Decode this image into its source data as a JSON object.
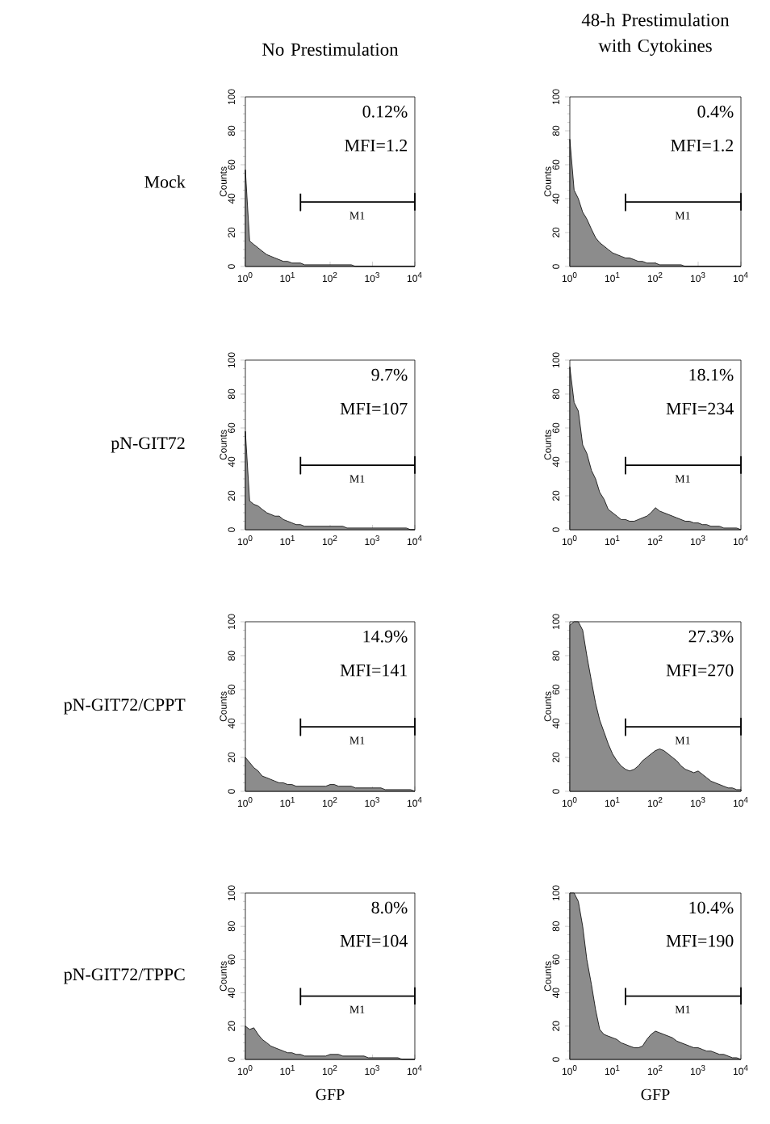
{
  "chart_data": [
    {
      "type": "area",
      "title": "No Prestimulation",
      "ylabel": "Counts",
      "log": "x",
      "xlim": [
        1,
        10000
      ],
      "ylim": [
        0,
        100
      ],
      "xticks": [
        {
          "value": 1,
          "label": "10$^{0}$"
        },
        {
          "value": 10,
          "label": "10$^{1}$"
        },
        {
          "value": 100,
          "label": "10$^{2}$"
        },
        {
          "value": 1000,
          "label": "10$^{3}$"
        },
        {
          "value": 10000,
          "label": "10$^{4}$"
        }
      ],
      "yticks": [
        0,
        20,
        40,
        60,
        80,
        100
      ],
      "annotations": [
        "Mock",
        "0.12%",
        "MFI=1.2",
        "M1"
      ],
      "series": [
        {
          "color": "#8c8c8c",
          "x": [
            1,
            1.26,
            1.58,
            2,
            2.5,
            3.2,
            4,
            5,
            6.3,
            7.9,
            10,
            12.6,
            15.8,
            20,
            25,
            32,
            40,
            50,
            63,
            79,
            100,
            126,
            158,
            200,
            251,
            316,
            398,
            501,
            631,
            794,
            1000,
            1259,
            1585,
            1995,
            2512,
            3162,
            3981,
            5012,
            6310,
            7943,
            10000
          ],
          "values": [
            57,
            15,
            13,
            11,
            9,
            7,
            6,
            5,
            4,
            3,
            3,
            2,
            2,
            2,
            1,
            1,
            1,
            1,
            1,
            1,
            1,
            1,
            1,
            1,
            1,
            1,
            0,
            0,
            0,
            0,
            0,
            0,
            0,
            0,
            0,
            0,
            0,
            0,
            0,
            0,
            0
          ]
        },
        {
          "type": "line",
          "color": "#000000",
          "x": [
            20,
            20,
            20,
            10000,
            10000,
            10000
          ],
          "values": [
            43,
            33,
            38,
            38,
            43,
            33
          ]
        }
      ]
    },
    {
      "type": "area",
      "title": "48-h Prestimulation with Cytokines",
      "ylabel": "Counts",
      "log": "x",
      "xlim": [
        1,
        10000
      ],
      "ylim": [
        0,
        100
      ],
      "xticks": [
        {
          "value": 1,
          "label": "10$^{0}$"
        },
        {
          "value": 10,
          "label": "10$^{1}$"
        },
        {
          "value": 100,
          "label": "10$^{2}$"
        },
        {
          "value": 1000,
          "label": "10$^{3}$"
        },
        {
          "value": 10000,
          "label": "10$^{4}$"
        }
      ],
      "yticks": [
        0,
        20,
        40,
        60,
        80,
        100
      ],
      "annotations": [
        "0.4%",
        "MFI=1.2",
        "M1"
      ],
      "series": [
        {
          "color": "#8c8c8c",
          "x": [
            1,
            1.26,
            1.58,
            2,
            2.5,
            3.2,
            4,
            5,
            6.3,
            7.9,
            10,
            12.6,
            15.8,
            20,
            25,
            32,
            40,
            50,
            63,
            79,
            100,
            126,
            158,
            200,
            251,
            316,
            398,
            501,
            631,
            794,
            1000,
            1259,
            1585,
            1995,
            2512,
            3162,
            3981,
            5012,
            6310,
            7943,
            10000
          ],
          "values": [
            75,
            45,
            40,
            32,
            28,
            22,
            17,
            14,
            12,
            10,
            8,
            7,
            6,
            5,
            5,
            4,
            3,
            3,
            2,
            2,
            2,
            1,
            1,
            1,
            1,
            1,
            1,
            0,
            0,
            0,
            0,
            0,
            0,
            0,
            0,
            0,
            0,
            0,
            0,
            0,
            0
          ]
        },
        {
          "type": "line",
          "color": "#000000",
          "x": [
            20,
            20,
            20,
            10000,
            10000,
            10000
          ],
          "values": [
            43,
            33,
            38,
            38,
            43,
            33
          ]
        }
      ]
    },
    {
      "type": "area",
      "ylabel": "Counts",
      "log": "x",
      "xlim": [
        1,
        10000
      ],
      "ylim": [
        0,
        100
      ],
      "xticks": [
        {
          "value": 1,
          "label": "10$^{0}$"
        },
        {
          "value": 10,
          "label": "10$^{1}$"
        },
        {
          "value": 100,
          "label": "10$^{2}$"
        },
        {
          "value": 1000,
          "label": "10$^{3}$"
        },
        {
          "value": 10000,
          "label": "10$^{4}$"
        }
      ],
      "yticks": [
        0,
        20,
        40,
        60,
        80,
        100
      ],
      "annotations": [
        "pN-GIT72",
        "9.7%",
        "MFI=107",
        "M1"
      ],
      "series": [
        {
          "color": "#8c8c8c",
          "x": [
            1,
            1.26,
            1.58,
            2,
            2.5,
            3.2,
            4,
            5,
            6.3,
            7.9,
            10,
            12.6,
            15.8,
            20,
            25,
            32,
            40,
            50,
            63,
            79,
            100,
            126,
            158,
            200,
            251,
            316,
            398,
            501,
            631,
            794,
            1000,
            1259,
            1585,
            1995,
            2512,
            3162,
            3981,
            5012,
            6310,
            7943,
            10000
          ],
          "values": [
            58,
            17,
            15,
            14,
            12,
            10,
            9,
            8,
            8,
            6,
            5,
            4,
            3,
            3,
            2,
            2,
            2,
            2,
            2,
            2,
            2,
            2,
            2,
            2,
            1,
            1,
            1,
            1,
            1,
            1,
            1,
            1,
            1,
            1,
            1,
            1,
            1,
            1,
            1,
            0,
            0
          ]
        },
        {
          "type": "line",
          "color": "#000000",
          "x": [
            20,
            20,
            20,
            10000,
            10000,
            10000
          ],
          "values": [
            43,
            33,
            38,
            38,
            43,
            33
          ]
        }
      ]
    },
    {
      "type": "area",
      "ylabel": "Counts",
      "log": "x",
      "xlim": [
        1,
        10000
      ],
      "ylim": [
        0,
        100
      ],
      "xticks": [
        {
          "value": 1,
          "label": "10$^{0}$"
        },
        {
          "value": 10,
          "label": "10$^{1}$"
        },
        {
          "value": 100,
          "label": "10$^{2}$"
        },
        {
          "value": 1000,
          "label": "10$^{3}$"
        },
        {
          "value": 10000,
          "label": "10$^{4}$"
        }
      ],
      "yticks": [
        0,
        20,
        40,
        60,
        80,
        100
      ],
      "annotations": [
        "18.1%",
        "MFI=234",
        "M1"
      ],
      "series": [
        {
          "color": "#8c8c8c",
          "x": [
            1,
            1.26,
            1.58,
            2,
            2.5,
            3.2,
            4,
            5,
            6.3,
            7.9,
            10,
            12.6,
            15.8,
            20,
            25,
            32,
            40,
            50,
            63,
            79,
            100,
            126,
            158,
            200,
            251,
            316,
            398,
            501,
            631,
            794,
            1000,
            1259,
            1585,
            1995,
            2512,
            3162,
            3981,
            5012,
            6310,
            7943,
            10000
          ],
          "values": [
            96,
            75,
            70,
            50,
            45,
            35,
            30,
            22,
            18,
            12,
            10,
            8,
            6,
            6,
            5,
            5,
            6,
            7,
            8,
            10,
            13,
            11,
            10,
            9,
            8,
            7,
            6,
            5,
            5,
            4,
            4,
            3,
            3,
            2,
            2,
            2,
            1,
            1,
            1,
            1,
            0
          ]
        },
        {
          "type": "line",
          "color": "#000000",
          "x": [
            20,
            20,
            20,
            10000,
            10000,
            10000
          ],
          "values": [
            43,
            33,
            38,
            38,
            43,
            33
          ]
        }
      ]
    },
    {
      "type": "area",
      "ylabel": "Counts",
      "log": "x",
      "xlim": [
        1,
        10000
      ],
      "ylim": [
        0,
        100
      ],
      "xticks": [
        {
          "value": 1,
          "label": "10$^{0}$"
        },
        {
          "value": 10,
          "label": "10$^{1}$"
        },
        {
          "value": 100,
          "label": "10$^{2}$"
        },
        {
          "value": 1000,
          "label": "10$^{3}$"
        },
        {
          "value": 10000,
          "label": "10$^{4}$"
        }
      ],
      "yticks": [
        0,
        20,
        40,
        60,
        80,
        100
      ],
      "annotations": [
        "pN-GIT72/CPPT",
        "14.9%",
        "MFI=141",
        "M1"
      ],
      "series": [
        {
          "color": "#8c8c8c",
          "x": [
            1,
            1.26,
            1.58,
            2,
            2.5,
            3.2,
            4,
            5,
            6.3,
            7.9,
            10,
            12.6,
            15.8,
            20,
            25,
            32,
            40,
            50,
            63,
            79,
            100,
            126,
            158,
            200,
            251,
            316,
            398,
            501,
            631,
            794,
            1000,
            1259,
            1585,
            1995,
            2512,
            3162,
            3981,
            5012,
            6310,
            7943,
            10000
          ],
          "values": [
            20,
            17,
            14,
            12,
            9,
            8,
            7,
            6,
            5,
            5,
            4,
            4,
            3,
            3,
            3,
            3,
            3,
            3,
            3,
            3,
            4,
            4,
            3,
            3,
            3,
            3,
            2,
            2,
            2,
            2,
            2,
            2,
            2,
            1,
            1,
            1,
            1,
            1,
            1,
            1,
            0
          ]
        },
        {
          "type": "line",
          "color": "#000000",
          "x": [
            20,
            20,
            20,
            10000,
            10000,
            10000
          ],
          "values": [
            43,
            33,
            38,
            38,
            43,
            33
          ]
        }
      ]
    },
    {
      "type": "area",
      "ylabel": "Counts",
      "log": "x",
      "xlim": [
        1,
        10000
      ],
      "ylim": [
        0,
        100
      ],
      "xticks": [
        {
          "value": 1,
          "label": "10$^{0}$"
        },
        {
          "value": 10,
          "label": "10$^{1}$"
        },
        {
          "value": 100,
          "label": "10$^{2}$"
        },
        {
          "value": 1000,
          "label": "10$^{3}$"
        },
        {
          "value": 10000,
          "label": "10$^{4}$"
        }
      ],
      "yticks": [
        0,
        20,
        40,
        60,
        80,
        100
      ],
      "annotations": [
        "27.3%",
        "MFI=270",
        "M1"
      ],
      "series": [
        {
          "color": "#8c8c8c",
          "x": [
            1,
            1.26,
            1.58,
            2,
            2.5,
            3.2,
            4,
            5,
            6.3,
            7.9,
            10,
            12.6,
            15.8,
            20,
            25,
            32,
            40,
            50,
            63,
            79,
            100,
            126,
            158,
            200,
            251,
            316,
            398,
            501,
            631,
            794,
            1000,
            1259,
            1585,
            1995,
            2512,
            3162,
            3981,
            5012,
            6310,
            7943,
            10000
          ],
          "values": [
            98,
            100,
            100,
            95,
            80,
            65,
            52,
            42,
            35,
            28,
            22,
            18,
            15,
            13,
            12,
            13,
            15,
            18,
            20,
            22,
            24,
            25,
            24,
            22,
            20,
            18,
            15,
            13,
            12,
            11,
            12,
            10,
            8,
            6,
            5,
            4,
            3,
            2,
            2,
            1,
            1
          ]
        },
        {
          "type": "line",
          "color": "#000000",
          "x": [
            20,
            20,
            20,
            10000,
            10000,
            10000
          ],
          "values": [
            43,
            33,
            38,
            38,
            43,
            33
          ]
        }
      ]
    },
    {
      "type": "area",
      "xlabel": "GFP",
      "ylabel": "Counts",
      "log": "x",
      "xlim": [
        1,
        10000
      ],
      "ylim": [
        0,
        100
      ],
      "xticks": [
        {
          "value": 1,
          "label": "10$^{0}$"
        },
        {
          "value": 10,
          "label": "10$^{1}$"
        },
        {
          "value": 100,
          "label": "10$^{2}$"
        },
        {
          "value": 1000,
          "label": "10$^{3}$"
        },
        {
          "value": 10000,
          "label": "10$^{4}$"
        }
      ],
      "yticks": [
        0,
        20,
        40,
        60,
        80,
        100
      ],
      "annotations": [
        "pN-GIT72/TPPC",
        "8.0%",
        "MFI=104",
        "M1"
      ],
      "series": [
        {
          "color": "#8c8c8c",
          "x": [
            1,
            1.26,
            1.58,
            2,
            2.5,
            3.2,
            4,
            5,
            6.3,
            7.9,
            10,
            12.6,
            15.8,
            20,
            25,
            32,
            40,
            50,
            63,
            79,
            100,
            126,
            158,
            200,
            251,
            316,
            398,
            501,
            631,
            794,
            1000,
            1259,
            1585,
            1995,
            2512,
            3162,
            3981,
            5012,
            6310,
            7943,
            10000
          ],
          "values": [
            20,
            18,
            19,
            15,
            12,
            10,
            8,
            7,
            6,
            5,
            4,
            4,
            3,
            3,
            2,
            2,
            2,
            2,
            2,
            2,
            3,
            3,
            3,
            2,
            2,
            2,
            2,
            2,
            2,
            1,
            1,
            1,
            1,
            1,
            1,
            1,
            1,
            0,
            0,
            0,
            0
          ]
        },
        {
          "type": "line",
          "color": "#000000",
          "x": [
            20,
            20,
            20,
            10000,
            10000,
            10000
          ],
          "values": [
            43,
            33,
            38,
            38,
            43,
            33
          ]
        }
      ]
    },
    {
      "type": "area",
      "xlabel": "GFP",
      "ylabel": "Counts",
      "log": "x",
      "xlim": [
        1,
        10000
      ],
      "ylim": [
        0,
        100
      ],
      "xticks": [
        {
          "value": 1,
          "label": "10$^{0}$"
        },
        {
          "value": 10,
          "label": "10$^{1}$"
        },
        {
          "value": 100,
          "label": "10$^{2}$"
        },
        {
          "value": 1000,
          "label": "10$^{3}$"
        },
        {
          "value": 10000,
          "label": "10$^{4}$"
        }
      ],
      "yticks": [
        0,
        20,
        40,
        60,
        80,
        100
      ],
      "annotations": [
        "10.4%",
        "MFI=190",
        "M1"
      ],
      "series": [
        {
          "color": "#8c8c8c",
          "x": [
            1,
            1.26,
            1.58,
            2,
            2.5,
            3.2,
            4,
            5,
            6.3,
            7.9,
            10,
            12.6,
            15.8,
            20,
            25,
            32,
            40,
            50,
            63,
            79,
            100,
            126,
            158,
            200,
            251,
            316,
            398,
            501,
            631,
            794,
            1000,
            1259,
            1585,
            1995,
            2512,
            3162,
            3981,
            5012,
            6310,
            7943,
            10000
          ],
          "values": [
            100,
            100,
            95,
            80,
            60,
            45,
            30,
            18,
            15,
            14,
            13,
            12,
            10,
            9,
            8,
            7,
            7,
            8,
            12,
            15,
            17,
            16,
            15,
            14,
            13,
            11,
            10,
            9,
            8,
            7,
            7,
            6,
            5,
            5,
            4,
            3,
            3,
            2,
            1,
            1,
            0
          ]
        },
        {
          "type": "line",
          "color": "#000000",
          "x": [
            20,
            20,
            20,
            10000,
            10000,
            10000
          ],
          "values": [
            43,
            33,
            38,
            38,
            43,
            33
          ]
        }
      ]
    }
  ]
}
